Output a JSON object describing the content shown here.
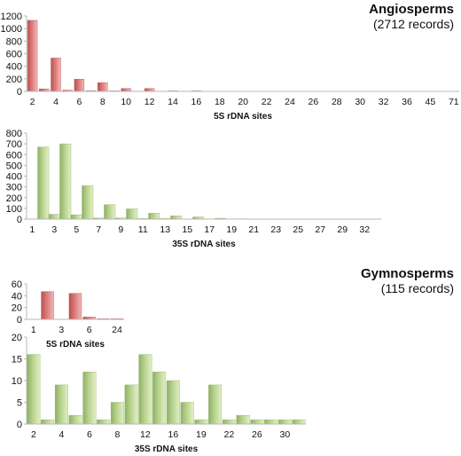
{
  "groups": {
    "angiosperms": {
      "name": "Angiosperms",
      "records": "(2712 records)"
    },
    "gymnosperms": {
      "name": "Gymnosperms",
      "records": "(115 records)"
    }
  },
  "colors": {
    "5S": {
      "light": "#f2b8b8",
      "mid": "#dd7a7a",
      "dark": "#b85252"
    },
    "35S": {
      "light": "#e3f0c4",
      "mid": "#b8d38e",
      "dark": "#8fb066"
    },
    "axis": "#b8b8b8",
    "text": "#111111"
  },
  "chart_data": [
    {
      "id": "angio-5s",
      "type": "bar",
      "color": "5S",
      "xlabel": "5S rDNA sites",
      "ylabel": "",
      "ylim": [
        0,
        1200
      ],
      "yticks": [
        0,
        200,
        400,
        600,
        800,
        1000,
        1200
      ],
      "categories": [
        "2",
        "3",
        "4",
        "5",
        "6",
        "7",
        "8",
        "9",
        "10",
        "11",
        "12",
        "13",
        "14",
        "15",
        "16",
        "17",
        "18",
        "19",
        "20",
        "21",
        "22",
        "23",
        "24",
        "25",
        "26",
        "27",
        "28",
        "29",
        "30",
        "31",
        "32",
        "34",
        "36",
        "38",
        "45",
        "56",
        "71"
      ],
      "values": [
        1130,
        40,
        530,
        20,
        195,
        10,
        140,
        8,
        45,
        5,
        45,
        3,
        8,
        2,
        8,
        1,
        3,
        1,
        3,
        1,
        2,
        1,
        2,
        1,
        1,
        1,
        1,
        1,
        1,
        1,
        1,
        1,
        1,
        1,
        1,
        1,
        1
      ]
    },
    {
      "id": "angio-35s",
      "type": "bar",
      "color": "35S",
      "xlabel": "35S rDNA sites",
      "ylabel": "",
      "ylim": [
        0,
        800
      ],
      "yticks": [
        0,
        100,
        200,
        300,
        400,
        500,
        600,
        700,
        800
      ],
      "categories": [
        "1",
        "2",
        "3",
        "4",
        "5",
        "6",
        "7",
        "8",
        "9",
        "10",
        "11",
        "12",
        "13",
        "14",
        "15",
        "16",
        "17",
        "18",
        "19",
        "20",
        "21",
        "22",
        "23",
        "24",
        "25",
        "26",
        "27",
        "28",
        "29",
        "30",
        "32",
        "36"
      ],
      "values": [
        2,
        670,
        45,
        700,
        40,
        310,
        10,
        135,
        10,
        95,
        5,
        55,
        5,
        30,
        2,
        20,
        1,
        8,
        1,
        3,
        1,
        2,
        1,
        2,
        1,
        2,
        1,
        1,
        1,
        1,
        1,
        1
      ]
    },
    {
      "id": "gymno-5s",
      "type": "bar",
      "color": "5S",
      "xlabel": "5S rDNA sites",
      "ylabel": "",
      "ylim": [
        0,
        60
      ],
      "yticks": [
        0,
        20,
        40,
        60
      ],
      "categories": [
        "1",
        "2",
        "3",
        "4",
        "6",
        "8",
        "24"
      ],
      "values": [
        0,
        47,
        0,
        44,
        4,
        1,
        1
      ]
    },
    {
      "id": "gymno-35s",
      "type": "bar",
      "color": "35S",
      "xlabel": "35S rDNA sites",
      "ylabel": "",
      "ylim": [
        0,
        20
      ],
      "yticks": [
        0,
        5,
        10,
        15,
        20
      ],
      "categories": [
        "2",
        "3",
        "4",
        "5",
        "6",
        "7",
        "8",
        "10",
        "12",
        "14",
        "16",
        "18",
        "19",
        "20",
        "22",
        "24",
        "26",
        "28",
        "30",
        "38"
      ],
      "values": [
        16,
        1,
        9,
        2,
        12,
        1,
        5,
        9,
        16,
        12,
        10,
        5,
        1,
        9,
        1,
        2,
        1,
        1,
        1,
        1
      ]
    }
  ]
}
